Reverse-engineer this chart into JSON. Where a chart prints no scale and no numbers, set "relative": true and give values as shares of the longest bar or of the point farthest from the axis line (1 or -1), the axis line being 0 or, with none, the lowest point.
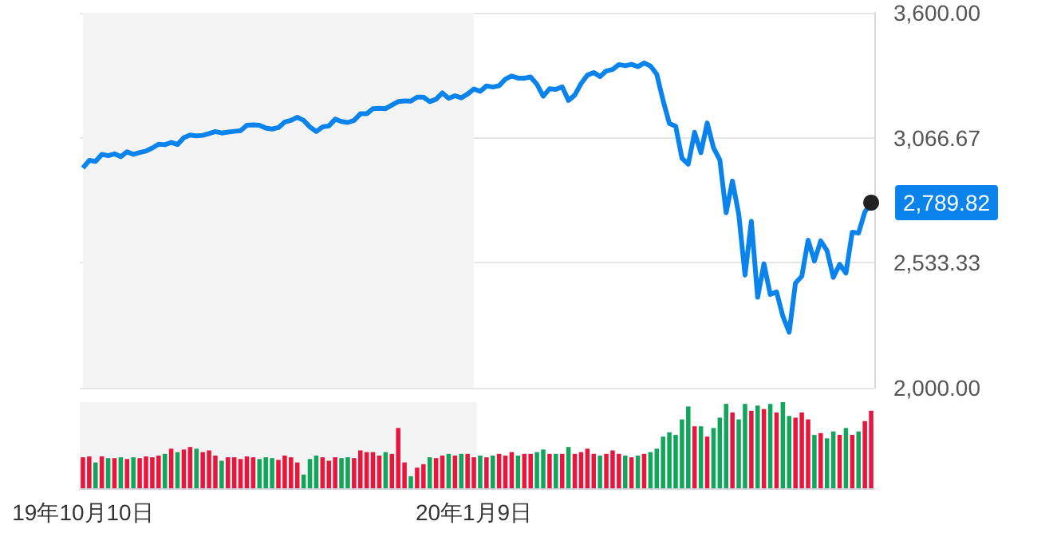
{
  "chart_data": [
    {
      "type": "line",
      "tick_labels": "y",
      "grid": "y",
      "categories": [
        "19年10月10日",
        null,
        null,
        null,
        null,
        null,
        null,
        null,
        null,
        null,
        null,
        null,
        null,
        null,
        null,
        null,
        null,
        null,
        null,
        null,
        null,
        null,
        null,
        null,
        null,
        null,
        null,
        null,
        null,
        null,
        null,
        null,
        null,
        null,
        null,
        null,
        null,
        null,
        null,
        null,
        null,
        null,
        null,
        null,
        null,
        null,
        null,
        null,
        null,
        null,
        null,
        null,
        null,
        null,
        null,
        null,
        null,
        null,
        null,
        null,
        null,
        null,
        "20年1月9日",
        null,
        null,
        null,
        null,
        null,
        null,
        null,
        null,
        null,
        null,
        null,
        null,
        null,
        null,
        null,
        null,
        null,
        null,
        null,
        null,
        null,
        null,
        null,
        null,
        null,
        null,
        null,
        null,
        null,
        null,
        null,
        null,
        null,
        null,
        null,
        null,
        null,
        null,
        null,
        null,
        null,
        null,
        null,
        null,
        null,
        null,
        null,
        null,
        null,
        null,
        null,
        null,
        null,
        null,
        null,
        null,
        null,
        null,
        null,
        null,
        null,
        null,
        null
      ],
      "ylim": [
        2000,
        3600
      ],
      "yticks": [
        {
          "value": 2000,
          "label": "2,000.00"
        },
        {
          "value": 2533.33,
          "label": "2,533.33"
        },
        {
          "value": 3066.67,
          "label": "3,066.67"
        },
        {
          "value": 3600,
          "label": "3,600.00"
        }
      ],
      "bands": [
        {
          "axis": "x",
          "from": "19年10月10日",
          "to": "20年1月9日",
          "color": "#f4f4f4"
        }
      ],
      "series": [
        {
          "color": "#0a84ec",
          "values": [
            2938,
            2970,
            2966,
            2996,
            2990,
            2998,
            2986,
            3007,
            2996,
            3004,
            3010,
            3023,
            3039,
            3037,
            3047,
            3038,
            3067,
            3078,
            3075,
            3077,
            3085,
            3093,
            3087,
            3091,
            3094,
            3097,
            3120,
            3122,
            3120,
            3108,
            3104,
            3110,
            3134,
            3141,
            3154,
            3141,
            3113,
            3093,
            3113,
            3117,
            3146,
            3136,
            3132,
            3141,
            3169,
            3169,
            3191,
            3192,
            3191,
            3206,
            3221,
            3224,
            3223,
            3240,
            3240,
            3221,
            3231,
            3258,
            3235,
            3246,
            3237,
            3253,
            3275,
            3265,
            3288,
            3283,
            3289,
            3317,
            3330,
            3321,
            3321,
            3326,
            3295,
            3244,
            3276,
            3273,
            3284,
            3226,
            3249,
            3298,
            3334,
            3345,
            3328,
            3352,
            3358,
            3379,
            3374,
            3380,
            3370,
            3386,
            3373,
            3338,
            3226,
            3128,
            3116,
            2979,
            2954,
            3090,
            3003,
            3130,
            3024,
            2972,
            2747,
            2882,
            2741,
            2481,
            2711,
            2386,
            2529,
            2398,
            2409,
            2305,
            2237,
            2447,
            2476,
            2630,
            2541,
            2627,
            2585,
            2471,
            2527,
            2489,
            2664,
            2660,
            2750,
            2789.82
          ],
          "value_labels": [
            null,
            null,
            null,
            null,
            null,
            null,
            null,
            null,
            null,
            null,
            null,
            null,
            null,
            null,
            null,
            null,
            null,
            null,
            null,
            null,
            null,
            null,
            null,
            null,
            null,
            null,
            null,
            null,
            null,
            null,
            null,
            null,
            null,
            null,
            null,
            null,
            null,
            null,
            null,
            null,
            null,
            null,
            null,
            null,
            null,
            null,
            null,
            null,
            null,
            null,
            null,
            null,
            null,
            null,
            null,
            null,
            null,
            null,
            null,
            null,
            null,
            null,
            null,
            null,
            null,
            null,
            null,
            null,
            null,
            null,
            null,
            null,
            null,
            null,
            null,
            null,
            null,
            null,
            null,
            null,
            null,
            null,
            null,
            null,
            null,
            null,
            null,
            null,
            null,
            null,
            null,
            null,
            null,
            null,
            null,
            null,
            null,
            null,
            null,
            null,
            null,
            null,
            null,
            null,
            null,
            null,
            null,
            null,
            null,
            null,
            null,
            null,
            null,
            null,
            null,
            null,
            null,
            null,
            null,
            null,
            null,
            null,
            null,
            null,
            null,
            "2,789.82"
          ]
        }
      ]
    },
    {
      "type": "bar",
      "relative": true,
      "tick_labels": "x",
      "grid": false,
      "categories": [
        "19年10月10日",
        null,
        null,
        null,
        null,
        null,
        null,
        null,
        null,
        null,
        null,
        null,
        null,
        null,
        null,
        null,
        null,
        null,
        null,
        null,
        null,
        null,
        null,
        null,
        null,
        null,
        null,
        null,
        null,
        null,
        null,
        null,
        null,
        null,
        null,
        null,
        null,
        null,
        null,
        null,
        null,
        null,
        null,
        null,
        null,
        null,
        null,
        null,
        null,
        null,
        null,
        null,
        null,
        null,
        null,
        null,
        null,
        null,
        null,
        null,
        null,
        null,
        "20年1月9日",
        null,
        null,
        null,
        null,
        null,
        null,
        null,
        null,
        null,
        null,
        null,
        null,
        null,
        null,
        null,
        null,
        null,
        null,
        null,
        null,
        null,
        null,
        null,
        null,
        null,
        null,
        null,
        null,
        null,
        null,
        null,
        null,
        null,
        null,
        null,
        null,
        null,
        null,
        null,
        null,
        null,
        null,
        null,
        null,
        null,
        null,
        null,
        null,
        null,
        null,
        null,
        null,
        null,
        null,
        null,
        null,
        null,
        null,
        null,
        null,
        null,
        null,
        null
      ],
      "bands": [
        {
          "axis": "x",
          "from": "19年10月10日",
          "to": "20年1月9日",
          "color": "#f4f4f4"
        }
      ],
      "values": [
        0.36,
        0.37,
        0.3,
        0.37,
        0.35,
        0.35,
        0.36,
        0.34,
        0.36,
        0.35,
        0.37,
        0.36,
        0.38,
        0.4,
        0.46,
        0.42,
        0.45,
        0.48,
        0.46,
        0.42,
        0.44,
        0.38,
        0.32,
        0.36,
        0.36,
        0.34,
        0.37,
        0.36,
        0.34,
        0.36,
        0.35,
        0.33,
        0.38,
        0.36,
        0.3,
        0.16,
        0.34,
        0.38,
        0.36,
        0.32,
        0.36,
        0.35,
        0.36,
        0.35,
        0.44,
        0.42,
        0.42,
        0.38,
        0.42,
        0.4,
        0.7,
        0.3,
        0.14,
        0.24,
        0.28,
        0.36,
        0.35,
        0.38,
        0.4,
        0.38,
        0.4,
        0.4,
        0.36,
        0.38,
        0.36,
        0.38,
        0.4,
        0.38,
        0.42,
        0.38,
        0.4,
        0.4,
        0.42,
        0.45,
        0.4,
        0.4,
        0.4,
        0.48,
        0.4,
        0.42,
        0.46,
        0.4,
        0.38,
        0.4,
        0.44,
        0.4,
        0.38,
        0.36,
        0.38,
        0.4,
        0.42,
        0.46,
        0.6,
        0.65,
        0.62,
        0.8,
        0.95,
        0.72,
        0.72,
        0.6,
        0.7,
        0.82,
        0.98,
        0.88,
        0.8,
        0.98,
        0.9,
        0.96,
        0.92,
        0.98,
        0.88,
        1.0,
        0.84,
        0.82,
        0.88,
        0.8,
        0.62,
        0.64,
        0.58,
        0.66,
        0.62,
        0.7,
        0.62,
        0.66,
        0.78,
        0.9
      ],
      "colors": [
        "#e8163c",
        "#e8163c",
        "#12a65c",
        "#e8163c",
        "#12a65c",
        "#e8163c",
        "#12a65c",
        "#e8163c",
        "#12a65c",
        "#e8163c",
        "#e8163c",
        "#e8163c",
        "#e8163c",
        "#12a65c",
        "#e8163c",
        "#12a65c",
        "#e8163c",
        "#e8163c",
        "#12a65c",
        "#e8163c",
        "#e8163c",
        "#e8163c",
        "#12a65c",
        "#e8163c",
        "#e8163c",
        "#e8163c",
        "#e8163c",
        "#e8163c",
        "#12a65c",
        "#12a65c",
        "#12a65c",
        "#e8163c",
        "#e8163c",
        "#e8163c",
        "#e8163c",
        "#12a65c",
        "#12a65c",
        "#12a65c",
        "#e8163c",
        "#e8163c",
        "#e8163c",
        "#12a65c",
        "#12a65c",
        "#e8163c",
        "#e8163c",
        "#e8163c",
        "#e8163c",
        "#e8163c",
        "#12a65c",
        "#e8163c",
        "#e8163c",
        "#e8163c",
        "#12a65c",
        "#e8163c",
        "#e8163c",
        "#12a65c",
        "#e8163c",
        "#e8163c",
        "#12a65c",
        "#e8163c",
        "#12a65c",
        "#e8163c",
        "#e8163c",
        "#12a65c",
        "#e8163c",
        "#12a65c",
        "#e8163c",
        "#e8163c",
        "#e8163c",
        "#12a65c",
        "#e8163c",
        "#e8163c",
        "#12a65c",
        "#12a65c",
        "#e8163c",
        "#12a65c",
        "#e8163c",
        "#12a65c",
        "#e8163c",
        "#e8163c",
        "#e8163c",
        "#e8163c",
        "#12a65c",
        "#e8163c",
        "#e8163c",
        "#e8163c",
        "#12a65c",
        "#e8163c",
        "#12a65c",
        "#e8163c",
        "#12a65c",
        "#12a65c",
        "#12a65c",
        "#12a65c",
        "#12a65c",
        "#12a65c",
        "#12a65c",
        "#e8163c",
        "#12a65c",
        "#e8163c",
        "#12a65c",
        "#12a65c",
        "#12a65c",
        "#e8163c",
        "#12a65c",
        "#12a65c",
        "#e8163c",
        "#12a65c",
        "#e8163c",
        "#12a65c",
        "#e8163c",
        "#12a65c",
        "#12a65c",
        "#e8163c",
        "#e8163c",
        "#e8163c",
        "#12a65c",
        "#e8163c",
        "#12a65c",
        "#12a65c",
        "#e8163c",
        "#12a65c",
        "#e8163c",
        "#12a65c",
        "#e8163c",
        "#e8163c"
      ]
    }
  ]
}
